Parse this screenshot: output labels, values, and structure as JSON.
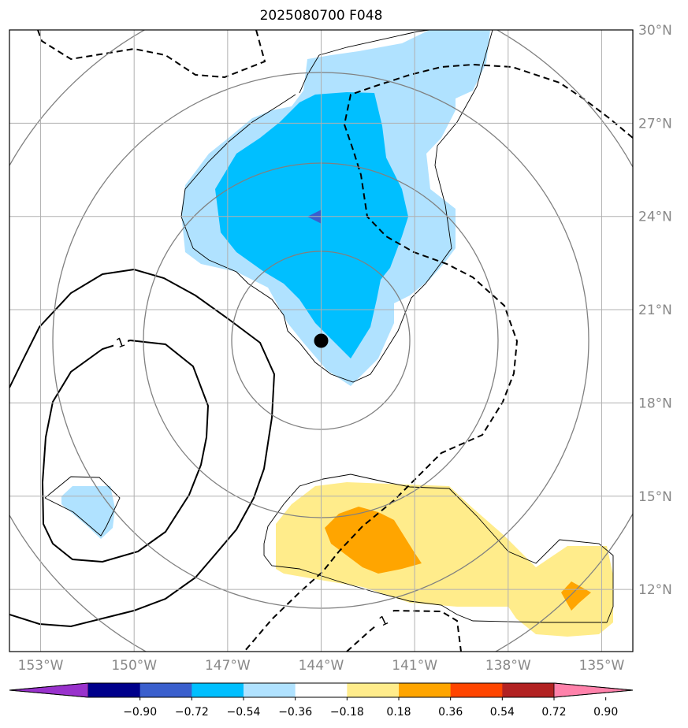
{
  "title": "2025080700 F048",
  "chart_data": {
    "type": "heatmap",
    "title": "2025080700 F048",
    "lon_range": [
      -154,
      -134
    ],
    "lat_range": [
      10,
      30
    ],
    "lon_ticks": [
      {
        "value": -153,
        "label": "153°W"
      },
      {
        "value": -150,
        "label": "150°W"
      },
      {
        "value": -147,
        "label": "147°W"
      },
      {
        "value": -144,
        "label": "144°W"
      },
      {
        "value": -141,
        "label": "141°W"
      },
      {
        "value": -138,
        "label": "138°W"
      },
      {
        "value": -135,
        "label": "135°W"
      }
    ],
    "lat_ticks": [
      {
        "value": 12,
        "label": "12°N"
      },
      {
        "value": 15,
        "label": "15°N"
      },
      {
        "value": 18,
        "label": "18°N"
      },
      {
        "value": 21,
        "label": "21°N"
      },
      {
        "value": 24,
        "label": "24°N"
      },
      {
        "value": 27,
        "label": "27°N"
      },
      {
        "value": 30,
        "label": "30°N"
      }
    ],
    "grid": true,
    "center_marker": {
      "lon": -144,
      "lat": 20
    },
    "range_rings_deg": [
      3,
      6,
      9,
      12
    ],
    "colorbar": {
      "levels": [
        -0.9,
        -0.72,
        -0.54,
        -0.36,
        -0.18,
        0.18,
        0.36,
        0.54,
        0.72,
        0.9
      ],
      "tick_labels": [
        "−0.90",
        "−0.72",
        "−0.54",
        "−0.36",
        "−0.18",
        "0.18",
        "0.36",
        "0.54",
        "0.72",
        "0.90"
      ],
      "colors": [
        "#9932cc",
        "#00008b",
        "#3a5fcd",
        "#00bfff",
        "#b0e2ff",
        "#ffffff",
        "#ffec8b",
        "#ffa500",
        "#ff4500",
        "#b22222",
        "#ff82ab"
      ],
      "extend": "both"
    },
    "contour_labels": [
      "1",
      "1"
    ]
  }
}
